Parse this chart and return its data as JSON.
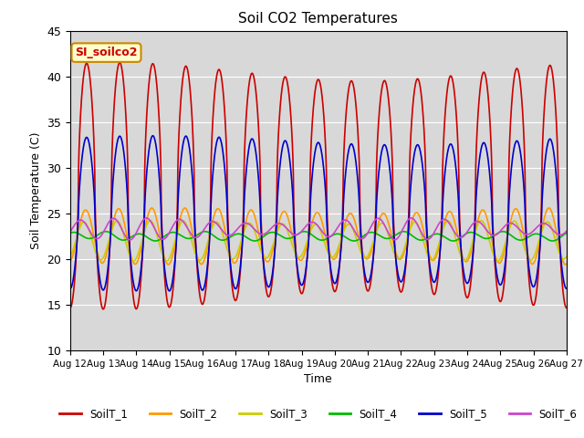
{
  "title": "Soil CO2 Temperatures",
  "xlabel": "Time",
  "ylabel": "Soil Temperature (C)",
  "ylim": [
    10,
    45
  ],
  "x_tick_labels": [
    "Aug 12",
    "Aug 13",
    "Aug 14",
    "Aug 15",
    "Aug 16",
    "Aug 17",
    "Aug 18",
    "Aug 19",
    "Aug 20",
    "Aug 21",
    "Aug 22",
    "Aug 23",
    "Aug 24",
    "Aug 25",
    "Aug 26",
    "Aug 27"
  ],
  "annotation_text": "SI_soilco2",
  "annotation_bg": "#ffffcc",
  "annotation_border": "#cc8800",
  "annotation_text_color": "#cc0000",
  "background_color": "#d8d8d8",
  "line_colors": [
    "#cc0000",
    "#ff9900",
    "#cccc00",
    "#00bb00",
    "#0000cc",
    "#cc44cc"
  ],
  "line_labels": [
    "SoilT_1",
    "SoilT_2",
    "SoilT_3",
    "SoilT_4",
    "SoilT_5",
    "SoilT_6"
  ],
  "legend_ncol": 6,
  "figsize": [
    6.4,
    4.8
  ],
  "dpi": 100
}
